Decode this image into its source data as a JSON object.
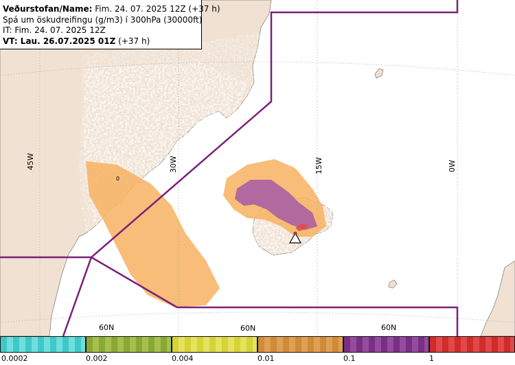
{
  "header": {
    "line1_label": "Veðurstofan/Name:",
    "line1_value": "Fim. 24. 07. 2025 12Z (+37 h)",
    "line2": "Spá um öskudreifingu (g/m3) í 300hPa (30000ft)",
    "line3": "IT: Fim. 24. 07. 2025 12Z",
    "line4_label": "VT: Lau. 26.07.2025 01Z",
    "line4_value": "(+37 h)"
  },
  "map": {
    "longitude_labels": [
      "45W",
      "30W",
      "15W",
      "0W"
    ],
    "latitude_labels": [
      "60N",
      "60N",
      "60N"
    ],
    "contour_label": "0",
    "colors": {
      "land": "#f0e1d3",
      "sea": "#ffffff",
      "grid": "#a8a8a8",
      "boundary": "#7b1f7a",
      "ash_light_cyan": "#9fe8e8",
      "ash_yellow": "#f2ec8a",
      "ash_orange": "#f7b260",
      "ash_purple": "#a55aa6",
      "ash_red": "#e04a4a"
    },
    "volcano_icon": "volcano-triangle-icon"
  },
  "legend": {
    "segments": [
      {
        "color": "#3fc8c8",
        "color_alt": "#6fdede"
      },
      {
        "color": "#8aa834",
        "color_alt": "#a5c04c"
      },
      {
        "color": "#d6d23a",
        "color_alt": "#e6e25c"
      },
      {
        "color": "#d08a3a",
        "color_alt": "#e0a052"
      },
      {
        "color": "#7a2e84",
        "color_alt": "#954b9e"
      },
      {
        "color": "#cf2c2c",
        "color_alt": "#e24848"
      }
    ],
    "labels": [
      "0.0002",
      "0.002",
      "0.004",
      "0.01",
      "0.1",
      "1"
    ]
  }
}
